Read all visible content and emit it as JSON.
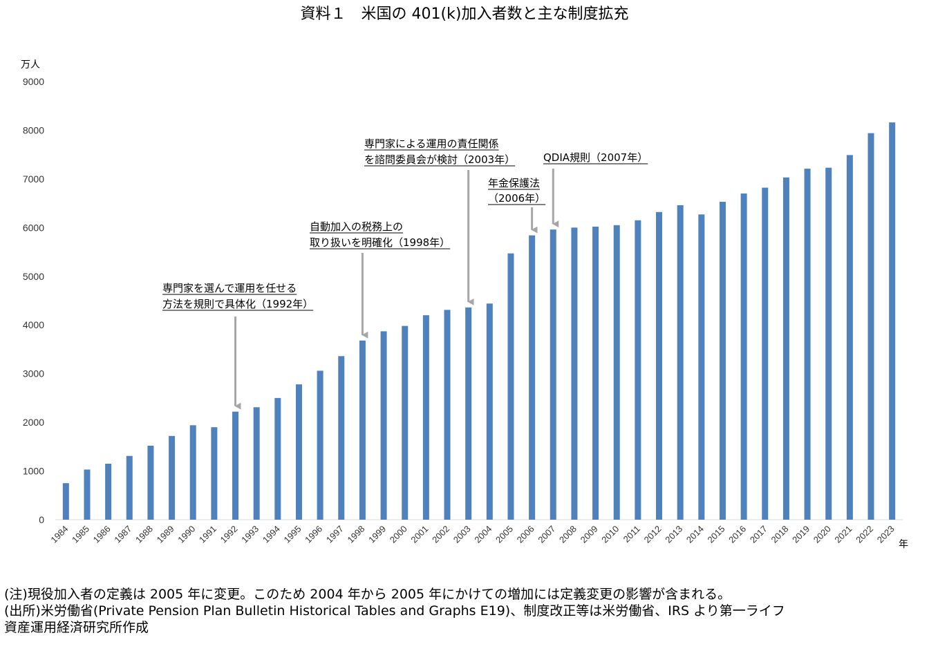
{
  "chart_data": {
    "type": "bar",
    "title": "資料１　米国の 401(k)加入者数と主な制度拡充",
    "ylabel": "万人",
    "xlabel": "年",
    "ylim": [
      0,
      9000
    ],
    "yticks": [
      "0",
      "1000",
      "2000",
      "3000",
      "4000",
      "5000",
      "6000",
      "7000",
      "8000",
      "9000"
    ],
    "categories": [
      "1984",
      "1985",
      "1986",
      "1987",
      "1988",
      "1989",
      "1990",
      "1991",
      "1992",
      "1993",
      "1994",
      "1995",
      "1996",
      "1997",
      "1998",
      "1999",
      "2000",
      "2001",
      "2002",
      "2003",
      "2004",
      "2005",
      "2006",
      "2007",
      "2008",
      "2009",
      "2010",
      "2011",
      "2012",
      "2013",
      "2014",
      "2015",
      "2016",
      "2017",
      "2018",
      "2019",
      "2020",
      "2021",
      "2022",
      "2023"
    ],
    "values": [
      750,
      1030,
      1150,
      1310,
      1520,
      1720,
      1940,
      1900,
      2220,
      2310,
      2500,
      2780,
      3060,
      3360,
      3680,
      3870,
      3980,
      4200,
      4310,
      4360,
      4440,
      5470,
      5840,
      5960,
      6000,
      6020,
      6050,
      6150,
      6320,
      6460,
      6270,
      6530,
      6700,
      6820,
      7030,
      7210,
      7230,
      7490,
      7940,
      8160
    ],
    "bar_color": "#4f81bd",
    "grid": false,
    "annotations": [
      {
        "lines": [
          "専門家を選んで運用を任せる",
          "方法を規則で具体化（1992年）"
        ],
        "year": "1992"
      },
      {
        "lines": [
          "自動加入の税務上の",
          "取り扱いを明確化（1998年）"
        ],
        "year": "1998"
      },
      {
        "lines": [
          "専門家による運用の責任関係",
          "を諮問委員会が検討（2003年）"
        ],
        "year": "2003"
      },
      {
        "lines": [
          "年金保護法",
          "（2006年）"
        ],
        "year": "2006"
      },
      {
        "lines": [
          "QDIA規則（2007年）"
        ],
        "year": "2007"
      }
    ]
  },
  "notes": [
    "(注)現役加入者の定義は 2005 年に変更。このため 2004 年から 2005 年にかけての増加には定義変更の影響が含まれる。",
    "(出所)米労働省(Private Pension Plan Bulletin Historical Tables and Graphs E19)、制度改正等は米労働省、IRS より第一ライフ",
    "資産運用経済研究所作成"
  ]
}
